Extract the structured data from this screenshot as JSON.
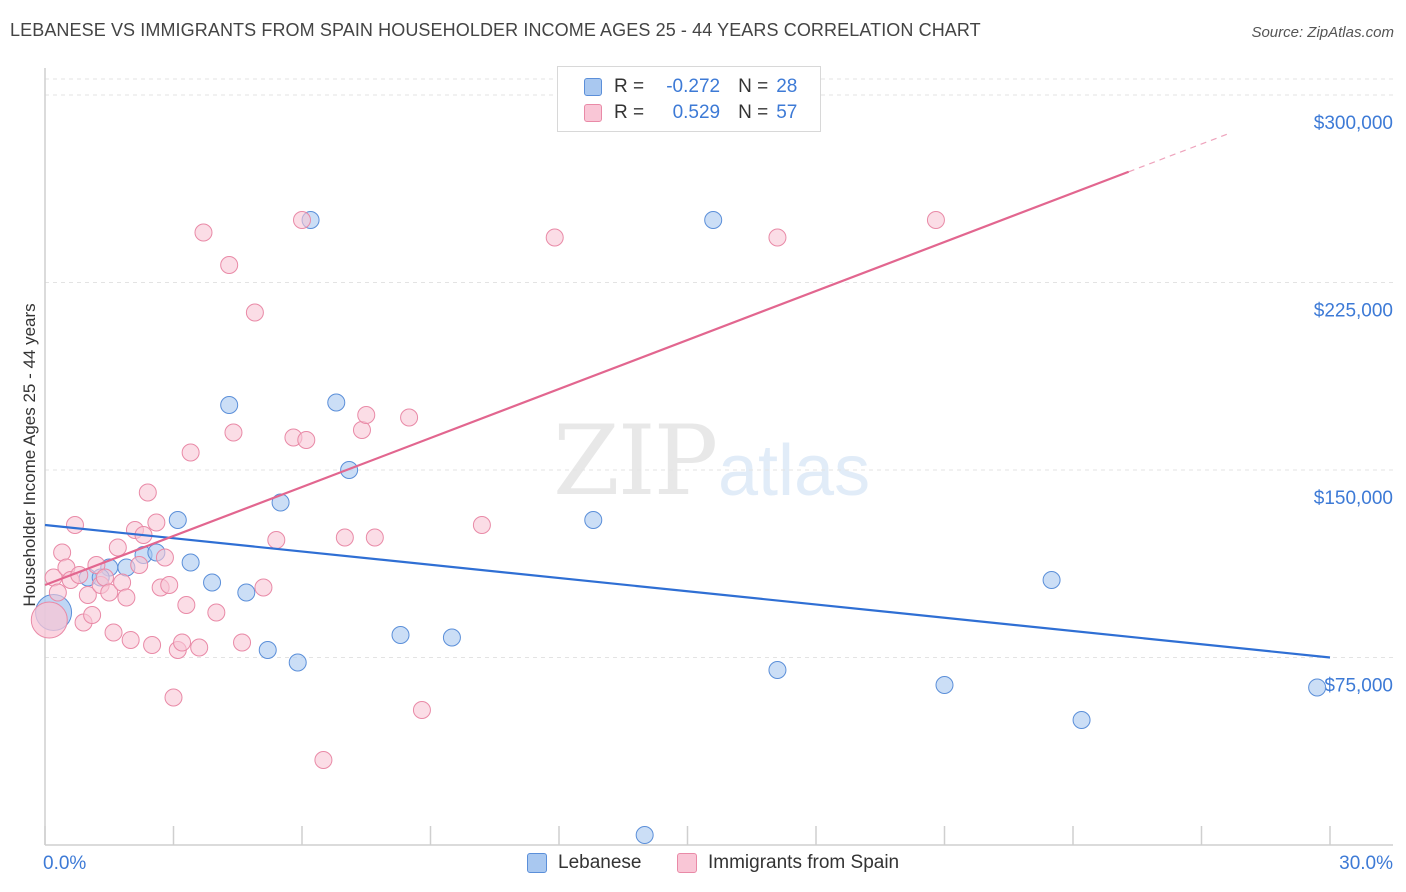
{
  "title": "LEBANESE VS IMMIGRANTS FROM SPAIN HOUSEHOLDER INCOME AGES 25 - 44 YEARS CORRELATION CHART",
  "source": "Source: ZipAtlas.com",
  "watermark": {
    "zip": "ZIP",
    "atlas": "atlas"
  },
  "legend_top": {
    "r_label": "R =",
    "n_label": "N =",
    "rows": [
      {
        "r": "-0.272",
        "n": "28",
        "color": "#a9c8f0",
        "border": "#5b8fd9"
      },
      {
        "r": "0.529",
        "n": "57",
        "color": "#f9c6d6",
        "border": "#e98aa7"
      }
    ]
  },
  "legend_bottom": {
    "items": [
      {
        "label": "Lebanese",
        "color": "#a9c8f0",
        "border": "#5b8fd9"
      },
      {
        "label": "Immigrants from Spain",
        "color": "#f9c6d6",
        "border": "#e98aa7"
      }
    ]
  },
  "chart_data": {
    "type": "scatter",
    "title": "LEBANESE VS IMMIGRANTS FROM SPAIN HOUSEHOLDER INCOME AGES 25 - 44 YEARS CORRELATION CHART",
    "xlabel": "",
    "ylabel": "Householder Income Ages 25 - 44 years",
    "xlim": [
      0,
      30
    ],
    "ylim": [
      0,
      310000
    ],
    "x_tick_labels": [
      "0.0%",
      "30.0%"
    ],
    "y_ticks": [
      {
        "value": 75000,
        "label": "$75,000"
      },
      {
        "value": 150000,
        "label": "$150,000"
      },
      {
        "value": 225000,
        "label": "$225,000"
      },
      {
        "value": 300000,
        "label": "$300,000"
      }
    ],
    "series": [
      {
        "name": "Lebanese",
        "color": "#a9c8f0",
        "stroke": "#5b8fd9",
        "line_color": "#2f6fd4",
        "trend": {
          "x0": 0,
          "y0": 128000,
          "x1": 30,
          "y1": 75000,
          "dash_from": 30
        },
        "points": [
          {
            "x": 0.2,
            "y": 93000,
            "big": true
          },
          {
            "x": 1.0,
            "y": 107000
          },
          {
            "x": 1.5,
            "y": 111000
          },
          {
            "x": 1.9,
            "y": 111000
          },
          {
            "x": 2.3,
            "y": 116000
          },
          {
            "x": 2.6,
            "y": 117000
          },
          {
            "x": 3.1,
            "y": 130000
          },
          {
            "x": 3.4,
            "y": 113000
          },
          {
            "x": 3.9,
            "y": 105000
          },
          {
            "x": 4.3,
            "y": 176000
          },
          {
            "x": 4.7,
            "y": 101000
          },
          {
            "x": 5.2,
            "y": 78000
          },
          {
            "x": 5.5,
            "y": 137000
          },
          {
            "x": 5.9,
            "y": 73000
          },
          {
            "x": 6.2,
            "y": 250000
          },
          {
            "x": 6.8,
            "y": 177000
          },
          {
            "x": 7.1,
            "y": 150000
          },
          {
            "x": 8.3,
            "y": 84000
          },
          {
            "x": 9.5,
            "y": 83000
          },
          {
            "x": 12.8,
            "y": 130000
          },
          {
            "x": 14.0,
            "y": 4000
          },
          {
            "x": 15.6,
            "y": 250000
          },
          {
            "x": 17.1,
            "y": 70000
          },
          {
            "x": 21.0,
            "y": 64000
          },
          {
            "x": 23.5,
            "y": 106000
          },
          {
            "x": 24.2,
            "y": 50000
          },
          {
            "x": 29.7,
            "y": 63000
          },
          {
            "x": 1.3,
            "y": 107000
          }
        ]
      },
      {
        "name": "Immigrants from Spain",
        "color": "#f9c6d6",
        "stroke": "#e98aa7",
        "line_color": "#e2668f",
        "trend": {
          "x0": 0,
          "y0": 104000,
          "x1": 30,
          "y1": 300000,
          "dash_from": 25.3
        },
        "points": [
          {
            "x": 0.1,
            "y": 90000,
            "big": true
          },
          {
            "x": 0.2,
            "y": 107000
          },
          {
            "x": 0.3,
            "y": 101000
          },
          {
            "x": 0.4,
            "y": 117000
          },
          {
            "x": 0.5,
            "y": 111000
          },
          {
            "x": 0.6,
            "y": 106000
          },
          {
            "x": 0.7,
            "y": 128000
          },
          {
            "x": 0.8,
            "y": 108000
          },
          {
            "x": 0.9,
            "y": 89000
          },
          {
            "x": 1.0,
            "y": 100000
          },
          {
            "x": 1.2,
            "y": 112000
          },
          {
            "x": 1.3,
            "y": 104000
          },
          {
            "x": 1.4,
            "y": 107000
          },
          {
            "x": 1.5,
            "y": 101000
          },
          {
            "x": 1.6,
            "y": 85000
          },
          {
            "x": 1.7,
            "y": 119000
          },
          {
            "x": 1.8,
            "y": 105000
          },
          {
            "x": 1.9,
            "y": 99000
          },
          {
            "x": 2.0,
            "y": 82000
          },
          {
            "x": 2.1,
            "y": 126000
          },
          {
            "x": 2.2,
            "y": 112000
          },
          {
            "x": 2.3,
            "y": 124000
          },
          {
            "x": 2.4,
            "y": 141000
          },
          {
            "x": 2.5,
            "y": 80000
          },
          {
            "x": 2.6,
            "y": 129000
          },
          {
            "x": 2.7,
            "y": 103000
          },
          {
            "x": 2.8,
            "y": 115000
          },
          {
            "x": 2.9,
            "y": 104000
          },
          {
            "x": 3.0,
            "y": 59000
          },
          {
            "x": 3.1,
            "y": 78000
          },
          {
            "x": 3.2,
            "y": 81000
          },
          {
            "x": 3.3,
            "y": 96000
          },
          {
            "x": 3.4,
            "y": 157000
          },
          {
            "x": 3.6,
            "y": 79000
          },
          {
            "x": 3.7,
            "y": 245000
          },
          {
            "x": 4.0,
            "y": 93000
          },
          {
            "x": 4.3,
            "y": 232000
          },
          {
            "x": 4.4,
            "y": 165000
          },
          {
            "x": 4.6,
            "y": 81000
          },
          {
            "x": 4.9,
            "y": 213000
          },
          {
            "x": 5.1,
            "y": 103000
          },
          {
            "x": 5.4,
            "y": 122000
          },
          {
            "x": 5.8,
            "y": 163000
          },
          {
            "x": 6.0,
            "y": 250000
          },
          {
            "x": 6.1,
            "y": 162000
          },
          {
            "x": 6.5,
            "y": 34000
          },
          {
            "x": 7.0,
            "y": 123000
          },
          {
            "x": 7.4,
            "y": 166000
          },
          {
            "x": 7.5,
            "y": 172000
          },
          {
            "x": 7.7,
            "y": 123000
          },
          {
            "x": 8.5,
            "y": 171000
          },
          {
            "x": 8.8,
            "y": 54000
          },
          {
            "x": 10.2,
            "y": 128000
          },
          {
            "x": 11.9,
            "y": 243000
          },
          {
            "x": 17.1,
            "y": 243000
          },
          {
            "x": 20.8,
            "y": 250000
          },
          {
            "x": 1.1,
            "y": 92000
          }
        ]
      }
    ]
  }
}
